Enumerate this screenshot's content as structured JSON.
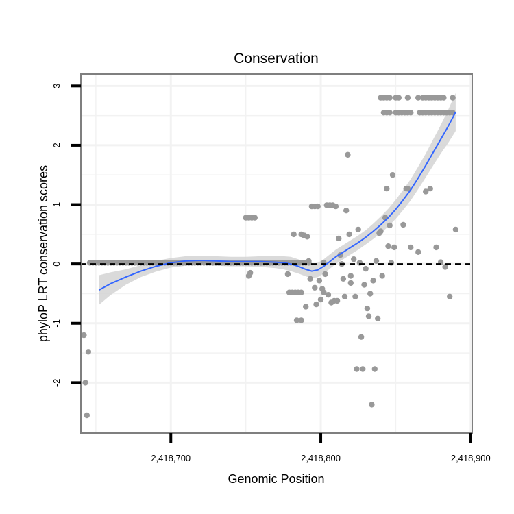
{
  "chart_data": {
    "type": "scatter",
    "title": "Conservation",
    "xlabel": "Genomic Position",
    "ylabel": "phyloP LRT conservation scores",
    "xlim": [
      2418640,
      2418901
    ],
    "ylim": [
      -2.85,
      3.2
    ],
    "x_ticks": [
      2418700,
      2418800,
      2418900
    ],
    "x_tick_labels": [
      "2,418,700",
      "2,418,800",
      "2,418,900"
    ],
    "y_ticks": [
      -2,
      -1,
      0,
      1,
      2,
      3
    ],
    "y_tick_labels": [
      "-2",
      "-1",
      "0",
      "1",
      "2",
      "3"
    ],
    "grid": true,
    "reference_line": {
      "y": 0,
      "style": "dashed",
      "color": "#000000"
    },
    "colors": {
      "points": "#999999",
      "smooth_line": "#3366ff",
      "confidence_band": "#d3d3d3",
      "border": "#7f7f7f",
      "grid": "#f2f2f2"
    },
    "points": [
      [
        2418642,
        -1.2
      ],
      [
        2418643,
        -2.0
      ],
      [
        2418644,
        -2.55
      ],
      [
        2418645,
        -1.48
      ],
      [
        2418646,
        0.02
      ],
      [
        2418648,
        0.02
      ],
      [
        2418650,
        0.02
      ],
      [
        2418652,
        0.02
      ],
      [
        2418654,
        0.02
      ],
      [
        2418656,
        0.02
      ],
      [
        2418658,
        0.02
      ],
      [
        2418660,
        0.02
      ],
      [
        2418662,
        0.02
      ],
      [
        2418664,
        0.02
      ],
      [
        2418666,
        0.02
      ],
      [
        2418668,
        0.02
      ],
      [
        2418670,
        0.02
      ],
      [
        2418672,
        0.02
      ],
      [
        2418674,
        0.02
      ],
      [
        2418676,
        0.02
      ],
      [
        2418678,
        0.02
      ],
      [
        2418680,
        0.02
      ],
      [
        2418682,
        0.02
      ],
      [
        2418684,
        0.02
      ],
      [
        2418686,
        0.02
      ],
      [
        2418688,
        0.02
      ],
      [
        2418690,
        0.02
      ],
      [
        2418692,
        0.02
      ],
      [
        2418694,
        0.02
      ],
      [
        2418696,
        0.02
      ],
      [
        2418698,
        0.02
      ],
      [
        2418700,
        0.02
      ],
      [
        2418702,
        0.02
      ],
      [
        2418704,
        0.02
      ],
      [
        2418706,
        0.02
      ],
      [
        2418708,
        0.02
      ],
      [
        2418710,
        0.02
      ],
      [
        2418712,
        0.02
      ],
      [
        2418714,
        0.02
      ],
      [
        2418716,
        0.02
      ],
      [
        2418718,
        0.02
      ],
      [
        2418720,
        0.02
      ],
      [
        2418722,
        0.02
      ],
      [
        2418724,
        0.02
      ],
      [
        2418726,
        0.02
      ],
      [
        2418728,
        0.02
      ],
      [
        2418730,
        0.02
      ],
      [
        2418732,
        0.02
      ],
      [
        2418734,
        0.02
      ],
      [
        2418736,
        0.02
      ],
      [
        2418738,
        0.02
      ],
      [
        2418740,
        0.02
      ],
      [
        2418742,
        0.02
      ],
      [
        2418744,
        0.02
      ],
      [
        2418746,
        0.02
      ],
      [
        2418748,
        0.02
      ],
      [
        2418750,
        0.02
      ],
      [
        2418752,
        0.02
      ],
      [
        2418754,
        0.02
      ],
      [
        2418756,
        0.02
      ],
      [
        2418758,
        0.02
      ],
      [
        2418760,
        0.02
      ],
      [
        2418762,
        0.02
      ],
      [
        2418764,
        0.02
      ],
      [
        2418766,
        0.02
      ],
      [
        2418768,
        0.02
      ],
      [
        2418770,
        0.02
      ],
      [
        2418772,
        0.02
      ],
      [
        2418774,
        0.02
      ],
      [
        2418776,
        0.02
      ],
      [
        2418778,
        0.02
      ],
      [
        2418780,
        0.02
      ],
      [
        2418782,
        0.02
      ],
      [
        2418784,
        0.02
      ],
      [
        2418786,
        0.02
      ],
      [
        2418788,
        0.02
      ],
      [
        2418790,
        0.02
      ],
      [
        2418792,
        0.02
      ],
      [
        2418750,
        0.78
      ],
      [
        2418752,
        0.78
      ],
      [
        2418754,
        0.78
      ],
      [
        2418756,
        0.78
      ],
      [
        2418752,
        -0.2
      ],
      [
        2418753,
        -0.15
      ],
      [
        2418778,
        -0.17
      ],
      [
        2418779,
        -0.48
      ],
      [
        2418781,
        -0.48
      ],
      [
        2418783,
        -0.48
      ],
      [
        2418785,
        -0.48
      ],
      [
        2418787,
        -0.48
      ],
      [
        2418784,
        -0.95
      ],
      [
        2418787,
        -0.95
      ],
      [
        2418782,
        0.5
      ],
      [
        2418787,
        0.5
      ],
      [
        2418789,
        0.48
      ],
      [
        2418791,
        0.46
      ],
      [
        2418790,
        -0.72
      ],
      [
        2418792,
        0.05
      ],
      [
        2418793,
        -0.25
      ],
      [
        2418794,
        0.97
      ],
      [
        2418796,
        0.97
      ],
      [
        2418798,
        0.97
      ],
      [
        2418796,
        -0.4
      ],
      [
        2418797,
        -0.68
      ],
      [
        2418799,
        -0.28
      ],
      [
        2418800,
        -0.6
      ],
      [
        2418801,
        -0.42
      ],
      [
        2418802,
        -0.48
      ],
      [
        2418802,
        0.02
      ],
      [
        2418803,
        -0.17
      ],
      [
        2418804,
        0.99
      ],
      [
        2418806,
        0.99
      ],
      [
        2418808,
        0.99
      ],
      [
        2418810,
        0.97
      ],
      [
        2418805,
        -0.52
      ],
      [
        2418807,
        -0.65
      ],
      [
        2418809,
        -0.62
      ],
      [
        2418811,
        -0.62
      ],
      [
        2418812,
        0.43
      ],
      [
        2418813,
        0.15
      ],
      [
        2418814,
        0.0
      ],
      [
        2418815,
        -0.25
      ],
      [
        2418816,
        -0.55
      ],
      [
        2418817,
        0.9
      ],
      [
        2418818,
        1.84
      ],
      [
        2418819,
        0.5
      ],
      [
        2418820,
        -0.2
      ],
      [
        2418820,
        -0.32
      ],
      [
        2418822,
        0.08
      ],
      [
        2418823,
        -0.55
      ],
      [
        2418824,
        -1.77
      ],
      [
        2418825,
        0.58
      ],
      [
        2418826,
        0.02
      ],
      [
        2418827,
        -1.23
      ],
      [
        2418828,
        -1.77
      ],
      [
        2418829,
        -0.35
      ],
      [
        2418830,
        -0.08
      ],
      [
        2418831,
        -0.75
      ],
      [
        2418832,
        -0.88
      ],
      [
        2418833,
        -0.5
      ],
      [
        2418834,
        -2.37
      ],
      [
        2418835,
        -0.28
      ],
      [
        2418836,
        -1.77
      ],
      [
        2418837,
        0.05
      ],
      [
        2418838,
        -0.92
      ],
      [
        2418839,
        0.52
      ],
      [
        2418840,
        0.55
      ],
      [
        2418841,
        -0.2
      ],
      [
        2418843,
        0.78
      ],
      [
        2418844,
        1.27
      ],
      [
        2418845,
        0.3
      ],
      [
        2418846,
        0.65
      ],
      [
        2418847,
        0.02
      ],
      [
        2418848,
        1.5
      ],
      [
        2418849,
        0.28
      ],
      [
        2418855,
        0.66
      ],
      [
        2418857,
        1.27
      ],
      [
        2418858,
        1.27
      ],
      [
        2418860,
        0.28
      ],
      [
        2418865,
        0.2
      ],
      [
        2418870,
        1.22
      ],
      [
        2418873,
        1.27
      ],
      [
        2418877,
        0.28
      ],
      [
        2418880,
        0.03
      ],
      [
        2418883,
        -0.05
      ],
      [
        2418886,
        -0.55
      ],
      [
        2418890,
        0.58
      ],
      [
        2418840,
        2.8
      ],
      [
        2418842,
        2.8
      ],
      [
        2418844,
        2.8
      ],
      [
        2418846,
        2.8
      ],
      [
        2418850,
        2.8
      ],
      [
        2418852,
        2.8
      ],
      [
        2418858,
        2.8
      ],
      [
        2418865,
        2.8
      ],
      [
        2418868,
        2.8
      ],
      [
        2418870,
        2.8
      ],
      [
        2418872,
        2.8
      ],
      [
        2418874,
        2.8
      ],
      [
        2418876,
        2.8
      ],
      [
        2418878,
        2.8
      ],
      [
        2418880,
        2.8
      ],
      [
        2418882,
        2.8
      ],
      [
        2418888,
        2.8
      ],
      [
        2418842,
        2.55
      ],
      [
        2418844,
        2.55
      ],
      [
        2418846,
        2.55
      ],
      [
        2418850,
        2.55
      ],
      [
        2418852,
        2.55
      ],
      [
        2418854,
        2.55
      ],
      [
        2418856,
        2.55
      ],
      [
        2418858,
        2.55
      ],
      [
        2418860,
        2.55
      ],
      [
        2418866,
        2.55
      ],
      [
        2418868,
        2.55
      ],
      [
        2418870,
        2.55
      ],
      [
        2418872,
        2.55
      ],
      [
        2418874,
        2.55
      ],
      [
        2418876,
        2.55
      ],
      [
        2418878,
        2.55
      ],
      [
        2418880,
        2.55
      ],
      [
        2418882,
        2.55
      ],
      [
        2418884,
        2.55
      ],
      [
        2418886,
        2.55
      ],
      [
        2418888,
        2.55
      ]
    ],
    "smooth": {
      "x": [
        2418652,
        2418660,
        2418670,
        2418680,
        2418690,
        2418700,
        2418710,
        2418720,
        2418730,
        2418740,
        2418750,
        2418760,
        2418770,
        2418775,
        2418780,
        2418785,
        2418790,
        2418794,
        2418798,
        2418802,
        2418806,
        2418810,
        2418815,
        2418820,
        2418825,
        2418830,
        2418835,
        2418840,
        2418845,
        2418850,
        2418855,
        2418860,
        2418865,
        2418870,
        2418875,
        2418880,
        2418885,
        2418890
      ],
      "y": [
        -0.44,
        -0.33,
        -0.22,
        -0.12,
        -0.04,
        0.02,
        0.05,
        0.06,
        0.05,
        0.04,
        0.04,
        0.04,
        0.03,
        0.02,
        0.0,
        -0.04,
        -0.09,
        -0.12,
        -0.1,
        -0.04,
        0.04,
        0.12,
        0.2,
        0.28,
        0.36,
        0.45,
        0.55,
        0.66,
        0.78,
        0.92,
        1.08,
        1.25,
        1.45,
        1.66,
        1.88,
        2.1,
        2.32,
        2.56
      ],
      "se": [
        0.25,
        0.19,
        0.13,
        0.1,
        0.09,
        0.08,
        0.08,
        0.08,
        0.08,
        0.08,
        0.08,
        0.09,
        0.1,
        0.11,
        0.12,
        0.12,
        0.12,
        0.12,
        0.12,
        0.12,
        0.12,
        0.12,
        0.12,
        0.12,
        0.12,
        0.12,
        0.13,
        0.14,
        0.15,
        0.16,
        0.17,
        0.18,
        0.19,
        0.2,
        0.22,
        0.24,
        0.28,
        0.32
      ]
    }
  }
}
